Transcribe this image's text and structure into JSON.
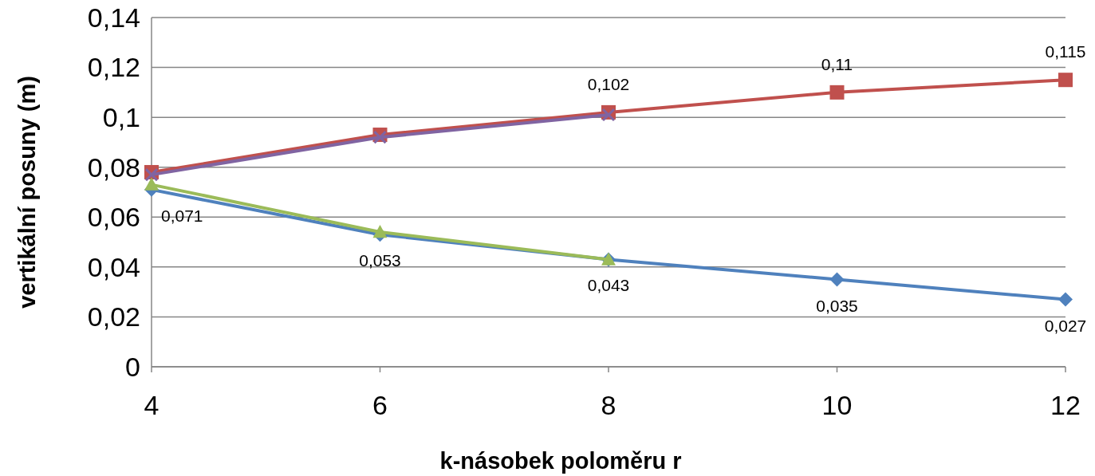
{
  "chart_data": {
    "type": "line",
    "xlabel": "k-násobek poloměru r",
    "ylabel": "vertikální posuny (m)",
    "xlim": [
      4,
      12
    ],
    "xticks": [
      4,
      6,
      8,
      10,
      12
    ],
    "ylim": [
      0,
      0.14
    ],
    "yticks": [
      {
        "value": 0,
        "label": "0"
      },
      {
        "value": 0.02,
        "label": "0,02"
      },
      {
        "value": 0.04,
        "label": "0,04"
      },
      {
        "value": 0.06,
        "label": "0,06"
      },
      {
        "value": 0.08,
        "label": "0,08"
      },
      {
        "value": 0.1,
        "label": "0,1"
      },
      {
        "value": 0.12,
        "label": "0,12"
      },
      {
        "value": 0.14,
        "label": "0,14"
      }
    ],
    "grid": "y",
    "series": [
      {
        "color": "#4f81bd",
        "marker": "diamond",
        "x": [
          4,
          6,
          8,
          10,
          12
        ],
        "values": [
          0.071,
          0.053,
          0.043,
          0.035,
          0.027
        ],
        "value_labels": [
          "0,071",
          "0,053",
          "0,043",
          "0,035",
          "0,027"
        ]
      },
      {
        "color": "#c0504d",
        "marker": "square",
        "x": [
          4,
          6,
          8,
          10,
          12
        ],
        "values": [
          0.078,
          0.093,
          0.102,
          0.11,
          0.115
        ],
        "value_labels": [
          null,
          null,
          "0,102",
          "0,11",
          "0,115"
        ]
      },
      {
        "color": "#8064a2",
        "marker": "cross",
        "x": [
          4,
          6,
          8
        ],
        "values": [
          0.077,
          0.092,
          0.101
        ]
      },
      {
        "color": "#9bbb59",
        "marker": "triangle",
        "x": [
          4,
          6,
          8
        ],
        "values": [
          0.073,
          0.054,
          0.043
        ]
      }
    ]
  }
}
